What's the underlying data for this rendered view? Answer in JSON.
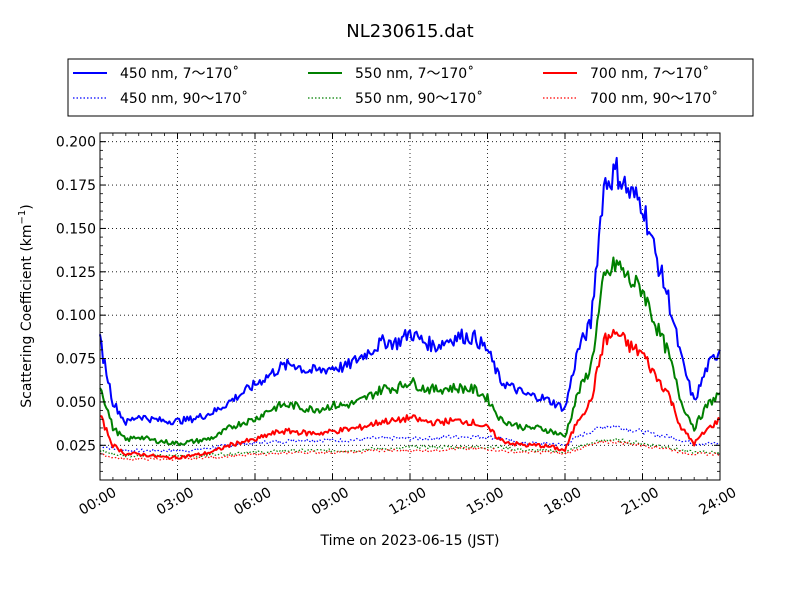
{
  "chart_data": {
    "type": "line",
    "title": "NL230615.dat",
    "xlabel": "Time on 2023-06-15 (JST)",
    "ylabel": "Scattering Coefficient (km",
    "ylabel_sup": "−1",
    "ylabel_close": ")",
    "xlim": [
      "00:00",
      "24:00"
    ],
    "ylim": [
      0.005,
      0.205
    ],
    "x_ticks": [
      "00:00",
      "03:00",
      "06:00",
      "09:00",
      "12:00",
      "15:00",
      "18:00",
      "21:00",
      "24:00"
    ],
    "y_ticks": [
      "0.025",
      "0.050",
      "0.075",
      "0.100",
      "0.125",
      "0.150",
      "0.175",
      "0.200"
    ],
    "grid": true,
    "legend_position": "top (above plot), 3 columns",
    "x_hours": [
      0,
      0.5,
      1,
      1.5,
      2,
      2.5,
      3,
      3.5,
      4,
      4.5,
      5,
      5.5,
      6,
      6.5,
      7,
      7.5,
      8,
      8.5,
      9,
      9.5,
      10,
      10.5,
      11,
      11.5,
      12,
      12.5,
      13,
      13.5,
      14,
      14.5,
      15,
      15.5,
      16,
      16.5,
      17,
      17.5,
      18,
      18.5,
      19,
      19.5,
      20,
      20.5,
      21,
      21.5,
      22,
      22.5,
      23,
      23.5,
      24
    ],
    "series": [
      {
        "name": "450 nm, 7～170˚",
        "color": "#0000ff",
        "style": "solid",
        "values": [
          0.085,
          0.05,
          0.038,
          0.042,
          0.04,
          0.039,
          0.039,
          0.04,
          0.042,
          0.045,
          0.05,
          0.055,
          0.06,
          0.065,
          0.07,
          0.072,
          0.068,
          0.068,
          0.07,
          0.07,
          0.075,
          0.08,
          0.085,
          0.084,
          0.09,
          0.085,
          0.082,
          0.086,
          0.088,
          0.087,
          0.08,
          0.062,
          0.058,
          0.054,
          0.053,
          0.05,
          0.046,
          0.08,
          0.095,
          0.175,
          0.183,
          0.17,
          0.165,
          0.135,
          0.11,
          0.075,
          0.05,
          0.07,
          0.08
        ]
      },
      {
        "name": "450 nm, 90～170˚",
        "color": "#0000ff",
        "style": "dotted",
        "values": [
          0.025,
          0.023,
          0.022,
          0.022,
          0.022,
          0.022,
          0.022,
          0.022,
          0.023,
          0.024,
          0.025,
          0.026,
          0.026,
          0.027,
          0.027,
          0.028,
          0.028,
          0.028,
          0.028,
          0.028,
          0.028,
          0.029,
          0.029,
          0.029,
          0.029,
          0.029,
          0.029,
          0.03,
          0.03,
          0.03,
          0.03,
          0.029,
          0.027,
          0.026,
          0.026,
          0.026,
          0.025,
          0.03,
          0.033,
          0.036,
          0.036,
          0.034,
          0.033,
          0.031,
          0.03,
          0.028,
          0.026,
          0.026,
          0.026
        ]
      },
      {
        "name": "550 nm, 7～170˚",
        "color": "#008000",
        "style": "solid",
        "values": [
          0.06,
          0.035,
          0.028,
          0.03,
          0.028,
          0.027,
          0.026,
          0.027,
          0.028,
          0.03,
          0.035,
          0.038,
          0.04,
          0.045,
          0.048,
          0.048,
          0.046,
          0.046,
          0.048,
          0.048,
          0.05,
          0.054,
          0.058,
          0.058,
          0.062,
          0.058,
          0.057,
          0.058,
          0.058,
          0.057,
          0.052,
          0.04,
          0.037,
          0.035,
          0.035,
          0.033,
          0.03,
          0.055,
          0.07,
          0.12,
          0.13,
          0.12,
          0.115,
          0.095,
          0.078,
          0.05,
          0.035,
          0.048,
          0.055
        ]
      },
      {
        "name": "550 nm, 90～170˚",
        "color": "#008000",
        "style": "dotted",
        "values": [
          0.022,
          0.02,
          0.019,
          0.019,
          0.019,
          0.019,
          0.019,
          0.019,
          0.019,
          0.02,
          0.02,
          0.021,
          0.021,
          0.021,
          0.022,
          0.022,
          0.022,
          0.022,
          0.022,
          0.022,
          0.022,
          0.023,
          0.023,
          0.023,
          0.024,
          0.024,
          0.024,
          0.024,
          0.024,
          0.024,
          0.024,
          0.024,
          0.023,
          0.022,
          0.022,
          0.022,
          0.021,
          0.024,
          0.026,
          0.028,
          0.028,
          0.027,
          0.026,
          0.025,
          0.024,
          0.022,
          0.021,
          0.021,
          0.021
        ]
      },
      {
        "name": "700 nm, 7～170˚",
        "color": "#ff0000",
        "style": "solid",
        "values": [
          0.042,
          0.025,
          0.02,
          0.02,
          0.019,
          0.018,
          0.018,
          0.019,
          0.02,
          0.022,
          0.025,
          0.027,
          0.028,
          0.031,
          0.033,
          0.033,
          0.032,
          0.032,
          0.033,
          0.034,
          0.035,
          0.037,
          0.039,
          0.039,
          0.041,
          0.039,
          0.038,
          0.039,
          0.039,
          0.038,
          0.035,
          0.028,
          0.026,
          0.025,
          0.025,
          0.024,
          0.022,
          0.04,
          0.05,
          0.085,
          0.09,
          0.082,
          0.078,
          0.065,
          0.055,
          0.035,
          0.026,
          0.034,
          0.04
        ]
      },
      {
        "name": "700 nm, 90～170˚",
        "color": "#ff0000",
        "style": "dotted",
        "values": [
          0.02,
          0.018,
          0.017,
          0.017,
          0.017,
          0.017,
          0.017,
          0.017,
          0.018,
          0.018,
          0.019,
          0.019,
          0.02,
          0.02,
          0.02,
          0.021,
          0.021,
          0.021,
          0.021,
          0.021,
          0.021,
          0.022,
          0.022,
          0.022,
          0.022,
          0.022,
          0.022,
          0.023,
          0.023,
          0.023,
          0.023,
          0.022,
          0.021,
          0.021,
          0.021,
          0.021,
          0.02,
          0.023,
          0.025,
          0.027,
          0.027,
          0.026,
          0.025,
          0.024,
          0.023,
          0.021,
          0.02,
          0.02,
          0.02
        ]
      }
    ]
  }
}
